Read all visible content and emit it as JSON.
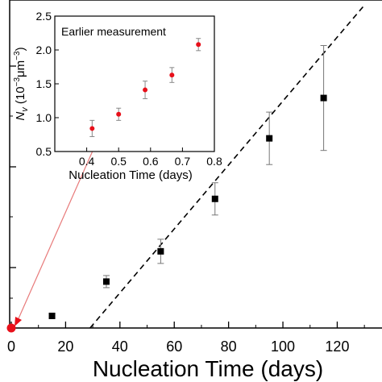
{
  "chart_data": [
    {
      "type": "scatter",
      "xlabel": "Nucleation Time (days)",
      "ylabel": "",
      "xlim": [
        0,
        130
      ],
      "ylim": [
        0,
        1.6
      ],
      "x_ticks": [
        "0",
        "20",
        "40",
        "60",
        "80",
        "100",
        "120"
      ],
      "series": [
        {
          "x": [
            15,
            35,
            55,
            75,
            95,
            115
          ],
          "y": [
            0.06,
            0.23,
            0.38,
            0.64,
            0.94,
            1.14
          ],
          "err": [
            0.01,
            0.03,
            0.06,
            0.08,
            0.13,
            0.26
          ],
          "color": "#000000",
          "marker": "square"
        },
        {
          "x": [
            0
          ],
          "y": [
            0
          ],
          "color": "#e8101a",
          "marker": "circle"
        }
      ],
      "fit_line": {
        "x": [
          29,
          130
        ],
        "y": [
          0,
          1.6
        ],
        "style": "dashed",
        "color": "#000000"
      },
      "grid": false
    },
    {
      "type": "scatter",
      "title": "Earlier measurement",
      "xlabel": "Nucleation Time (days)",
      "ylabel": "N_v (10^-3 μm^-3)",
      "ylabel_parts": {
        "symbol": "N",
        "sub": "v",
        "open": " (10",
        "exp1": "−3",
        "unit": "μm",
        "exp2": "−3",
        "close": ")"
      },
      "xlim": [
        0.3,
        0.8
      ],
      "ylim": [
        0.5,
        2.5
      ],
      "x_ticks": [
        "0.4",
        "0.5",
        "0.6",
        "0.7",
        "0.8"
      ],
      "y_ticks": [
        "0.5",
        "1.0",
        "1.5",
        "2.0",
        "2.5"
      ],
      "series": [
        {
          "x": [
            0.417,
            0.5,
            0.583,
            0.667,
            0.75
          ],
          "y": [
            0.84,
            1.05,
            1.41,
            1.63,
            2.08
          ],
          "err": [
            0.12,
            0.09,
            0.13,
            0.11,
            0.09
          ],
          "color": "#e8101a",
          "marker": "circle"
        }
      ],
      "grid": false
    }
  ],
  "colors": {
    "highlight": "#e8101a",
    "connector": "#e87a7a",
    "axes": "#000000"
  }
}
